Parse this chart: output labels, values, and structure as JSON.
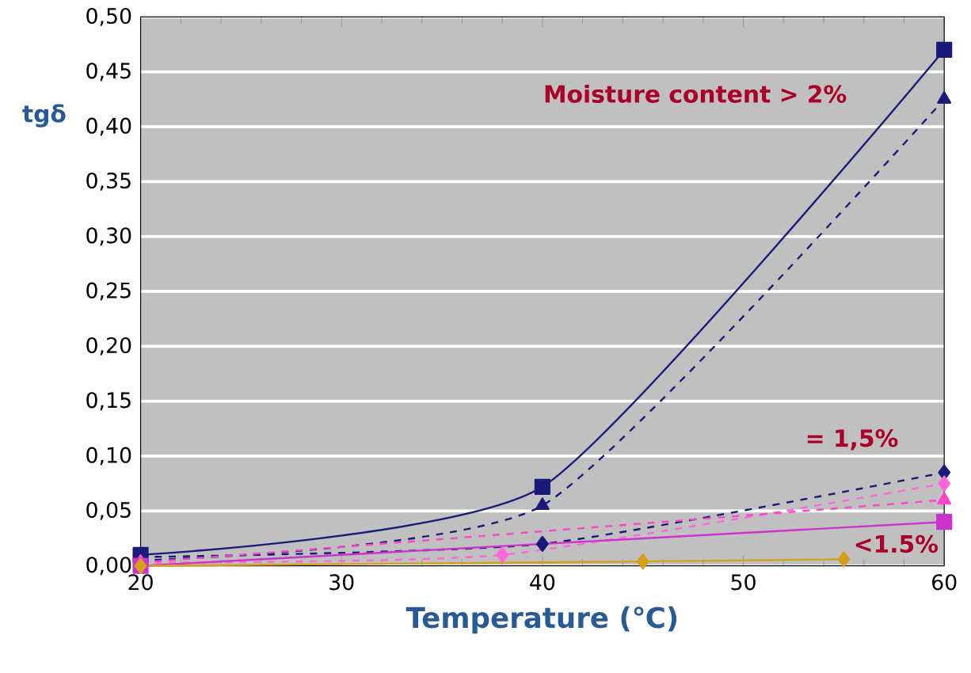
{
  "chart_data": {
    "type": "line",
    "xlabel": "Temperature (℃)",
    "ylabel": "tgδ",
    "xlim": [
      20,
      60
    ],
    "xticks": [
      20,
      30,
      40,
      50,
      60
    ],
    "ylim": [
      0,
      0.5
    ],
    "yticks": [
      {
        "value": 0,
        "label": "0,00"
      },
      {
        "value": 0.05,
        "label": "0,05"
      },
      {
        "value": 0.1,
        "label": "0,10"
      },
      {
        "value": 0.15,
        "label": "0,15"
      },
      {
        "value": 0.2,
        "label": "0,20"
      },
      {
        "value": 0.25,
        "label": "0,25"
      },
      {
        "value": 0.3,
        "label": "0,30"
      },
      {
        "value": 0.35,
        "label": "0,35"
      },
      {
        "value": 0.4,
        "label": "0,40"
      },
      {
        "value": 0.45,
        "label": "0,45"
      },
      {
        "value": 0.5,
        "label": "0,50"
      }
    ],
    "grid": "y",
    "series": [
      {
        "color": "#1a1a7a",
        "marker": "square",
        "line_style": "solid",
        "x": [
          20,
          40,
          60
        ],
        "values": [
          0.01,
          0.072,
          0.47
        ]
      },
      {
        "color": "#1a1a7a",
        "marker": "triangle",
        "line_style": "dashed",
        "x": [
          20,
          40,
          60
        ],
        "values": [
          0.005,
          0.055,
          0.425
        ]
      },
      {
        "color": "#1a1a7a",
        "marker": "diamond",
        "line_style": "dashed",
        "x": [
          20,
          40,
          60
        ],
        "values": [
          0.008,
          0.02,
          0.085
        ]
      },
      {
        "color": "#ff66dd",
        "marker": "diamond",
        "line_style": "dashed",
        "x": [
          20,
          38,
          60
        ],
        "values": [
          0.003,
          0.01,
          0.075
        ]
      },
      {
        "color": "#ff44cc",
        "marker": "triangle",
        "line_style": "dashed",
        "x": [
          20,
          60
        ],
        "values": [
          0.003,
          0.06
        ]
      },
      {
        "color": "#cc33cc",
        "marker": "square",
        "line_style": "solid",
        "x": [
          20,
          60
        ],
        "values": [
          0.0,
          0.04
        ]
      },
      {
        "color": "#d4a017",
        "marker": "diamond",
        "line_style": "solid",
        "x": [
          20,
          45,
          55
        ],
        "values": [
          0.0,
          0.004,
          0.006
        ]
      }
    ],
    "annotations": [
      "Moisture content > 2%",
      "= 1,5%",
      "<1.5%"
    ]
  }
}
